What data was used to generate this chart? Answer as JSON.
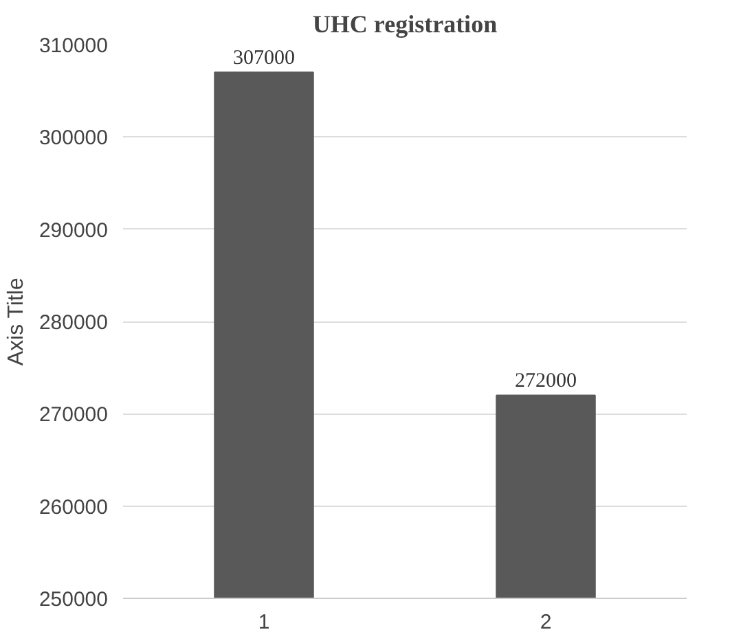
{
  "chart_data": {
    "type": "bar",
    "title": "UHC registration",
    "ylabel": "Axis Title",
    "categories": [
      "1",
      "2"
    ],
    "values": [
      307000,
      272000
    ],
    "color": "#595959",
    "ylim": [
      250000,
      310000
    ],
    "yticks": [
      250000,
      260000,
      270000,
      280000,
      290000,
      300000,
      310000
    ],
    "grid": "y",
    "data_labels": true
  }
}
